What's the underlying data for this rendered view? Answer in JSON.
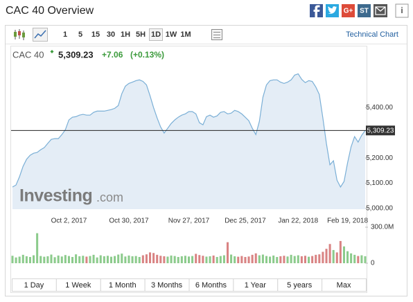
{
  "header": {
    "title": "CAC 40 Overview",
    "share_icons": [
      "G+",
      "ST",
      "i"
    ]
  },
  "toolbar": {
    "intervals": [
      "1",
      "5",
      "15",
      "30",
      "1H",
      "5H",
      "1D",
      "1W",
      "1M"
    ],
    "active": "1D",
    "link": "Technical Chart"
  },
  "quote": {
    "name": "CAC 40",
    "change": "+7.06",
    "change_pct": "(+0.13%)"
  },
  "watermark": {
    "brand": "Investing",
    "suffix": ".com"
  },
  "ranges": [
    "1 Day",
    "1 Week",
    "1 Month",
    "3 Months",
    "6 Months",
    "1 Year",
    "5 years",
    "Max"
  ],
  "chart_data": {
    "type": "line",
    "categories": [
      null,
      null,
      null,
      null,
      null,
      null,
      null,
      null,
      null,
      null,
      null,
      null,
      null,
      null,
      null,
      null,
      "Oct 2, 2017",
      null,
      null,
      null,
      null,
      null,
      null,
      null,
      null,
      null,
      null,
      null,
      null,
      null,
      null,
      null,
      null,
      "Oct 30, 2017",
      null,
      null,
      null,
      null,
      null,
      null,
      null,
      null,
      null,
      null,
      null,
      null,
      null,
      null,
      null,
      null,
      "Nov 27, 2017",
      null,
      null,
      null,
      null,
      null,
      null,
      null,
      null,
      null,
      null,
      null,
      null,
      null,
      null,
      null,
      "Dec 25, 2017",
      null,
      null,
      null,
      null,
      null,
      null,
      null,
      null,
      null,
      null,
      null,
      null,
      null,
      null,
      "Jan 22, 2018",
      null,
      null,
      null,
      null,
      null,
      null,
      null,
      null,
      null,
      null,
      null,
      null,
      null,
      "Feb 19, 2018",
      null,
      null,
      null,
      null,
      null
    ],
    "series": [
      {
        "color": "#7aafd6",
        "fill": "#e4edf6",
        "values": [
          5085,
          5093,
          5126,
          5167,
          5195,
          5211,
          5219,
          5222,
          5233,
          5241,
          5258,
          5274,
          5277,
          5277,
          5293,
          5312,
          5351,
          5362,
          5364,
          5370,
          5373,
          5370,
          5370,
          5381,
          5386,
          5386,
          5386,
          5389,
          5392,
          5397,
          5408,
          5455,
          5485,
          5496,
          5501,
          5507,
          5510,
          5504,
          5490,
          5447,
          5400,
          5359,
          5323,
          5299,
          5318,
          5337,
          5351,
          5362,
          5370,
          5375,
          5384,
          5384,
          5375,
          5340,
          5332,
          5364,
          5370,
          5362,
          5367,
          5381,
          5384,
          5375,
          5378,
          5389,
          5384,
          5375,
          5362,
          5348,
          5318,
          5293,
          5345,
          5441,
          5490,
          5507,
          5510,
          5510,
          5501,
          5496,
          5501,
          5510,
          5529,
          5534,
          5512,
          5499,
          5507,
          5504,
          5482,
          5452,
          5359,
          5258,
          5173,
          5189,
          5112,
          5085,
          5107,
          5181,
          5244,
          5285,
          5263,
          5290,
          5309.23
        ]
      },
      {
        "axis": "y2",
        "up_color": "#8ccb8c",
        "down_color": "#d98383",
        "values": [
          62,
          48,
          55,
          70,
          58,
          52,
          66,
          250,
          60,
          54,
          58,
          72,
          50,
          64,
          56,
          68,
          60,
          52,
          74,
          58,
          62,
          55,
          60,
          70,
          48,
          66,
          58,
          62,
          54,
          60,
          72,
          80,
          56,
          64,
          58,
          60,
          52,
          66,
          74,
          90,
          85,
          70,
          62,
          58,
          55,
          64,
          60,
          52,
          58,
          62,
          56,
          60,
          78,
          68,
          62,
          55,
          58,
          64,
          52,
          60,
          66,
          175,
          72,
          58,
          54,
          60,
          52,
          56,
          70,
          82,
          66,
          72,
          60,
          55,
          64,
          52,
          58,
          62,
          56,
          70,
          60,
          66,
          58,
          62,
          54,
          60,
          70,
          74,
          95,
          120,
          160,
          110,
          90,
          185,
          140,
          100,
          82,
          70,
          60,
          66,
          58
        ]
      }
    ],
    "current": {
      "value": 5309.23,
      "label": "5,309.23"
    },
    "ylim": [
      4997,
      5552
    ],
    "yticks": [
      {
        "value": 5000,
        "label": "5,000.00"
      },
      {
        "value": 5100,
        "label": "5,100.00"
      },
      {
        "value": 5200,
        "label": "5,200.00"
      },
      {
        "value": 5400,
        "label": "5,400.00"
      }
    ],
    "y2lim": [
      0,
      300
    ],
    "y2ticks": [
      {
        "value": 300,
        "label": "300.0M"
      },
      0
    ],
    "grid": false
  }
}
